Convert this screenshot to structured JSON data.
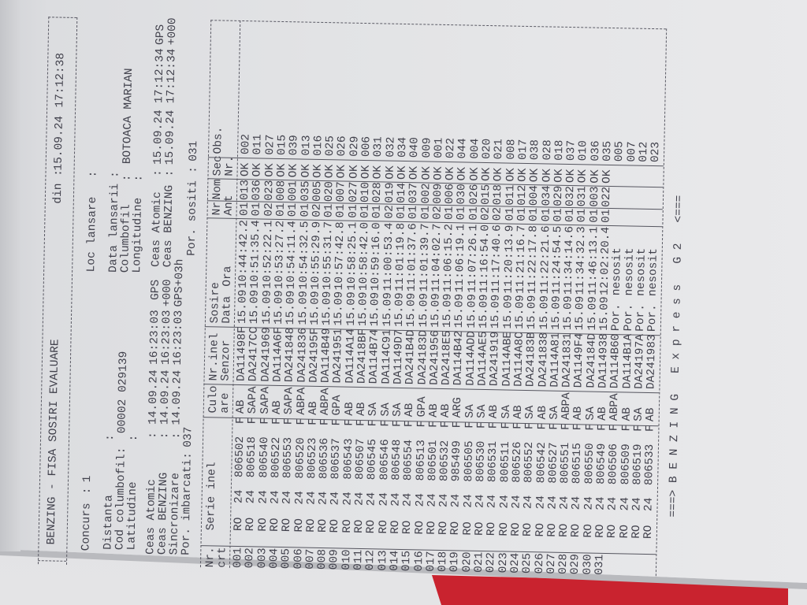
{
  "header": {
    "title": "BENZING - FISA SOSIRI EVALUARE",
    "din_label": "din :",
    "din_date": "15.09.24",
    "din_time": "17:12:38"
  },
  "info_left": {
    "concurs": {
      "label": "Concurs",
      "value": "1"
    },
    "distanta": {
      "label": "Distanta",
      "value": ""
    },
    "cod_columbofil": {
      "label": "Cod columbofil",
      "value": "00002 029139"
    },
    "latitudine": {
      "label": "Latitudine",
      "value": ""
    },
    "ceas_atomic": {
      "label": "Ceas Atomic",
      "date": "14.09.24",
      "time": "16:23:03",
      "tag": "GPS"
    },
    "ceas_benzing": {
      "label": "Ceas BENZING",
      "date": "14.09.24",
      "time": "16:23:03",
      "tag": "+000"
    },
    "sincronizare": {
      "label": "Sincronizare",
      "date": "14.09.24",
      "time": "16:23:03",
      "tag": "GPS+03h"
    },
    "por_imbarcati": {
      "label": "Por. imbarcati",
      "value": "037"
    }
  },
  "info_right": {
    "loc_lansare": {
      "label": "Loc lansare",
      "value": ""
    },
    "data_lansarii": {
      "label": "Data lansarii",
      "value": ""
    },
    "columbofil": {
      "label": "Columbofil",
      "value": "BOTOACA MARIAN"
    },
    "longitudine": {
      "label": "Longitudine",
      "value": ""
    },
    "ceas_atomic": {
      "label": "Ceas Atomic",
      "date": "15.09.24",
      "time": "17:12:34",
      "tag": "GPS"
    },
    "ceas_benzing": {
      "label": "Ceas BENZING",
      "date": "15.09.24",
      "time": "17:12:34",
      "tag": "+000"
    },
    "por_sositi": {
      "label": "Por. sositi",
      "value": "031"
    }
  },
  "table": {
    "headers": {
      "nr": [
        "Nr.",
        "crt"
      ],
      "serie": [
        "Serie inel",
        ""
      ],
      "culoare": [
        "Culo",
        "are"
      ],
      "senzor": [
        "Nr.inel",
        "Senzor"
      ],
      "sosire": [
        "Sosire",
        "Data",
        "Ora"
      ],
      "ant": [
        "Nr.",
        "Ant"
      ],
      "nom": [
        "Nom",
        ""
      ],
      "sec": [
        "Sec",
        "Nr."
      ],
      "obs": [
        "Obs.",
        ""
      ]
    },
    "rows": [
      [
        "001",
        "RO",
        "24",
        "806502",
        "F",
        "AB",
        "DA11498F",
        "15.09",
        "10:44:42.2",
        "01",
        "013",
        "OK",
        "002"
      ],
      [
        "002",
        "RO",
        "24",
        "806518",
        "F",
        "SAPA",
        "DA2417CC",
        "15.09",
        "10:51:35.4",
        "01",
        "036",
        "OK",
        "011"
      ],
      [
        "003",
        "RO",
        "24",
        "806540",
        "F",
        "SAPA",
        "DA241969",
        "15.09",
        "10:52:22.1",
        "02",
        "023",
        "OK",
        "027"
      ],
      [
        "004",
        "RO",
        "24",
        "806522",
        "F",
        "AB",
        "DA114A6F",
        "15.09",
        "10:53:27.2",
        "01",
        "008",
        "OK",
        "015"
      ],
      [
        "005",
        "RO",
        "24",
        "806553",
        "F",
        "SAPA",
        "DA241848",
        "15.09",
        "10:54:11.4",
        "01",
        "001",
        "OK",
        "039"
      ],
      [
        "006",
        "RO",
        "24",
        "806520",
        "F",
        "ABPA",
        "DA241836",
        "15.09",
        "10:54:32.5",
        "01",
        "035",
        "OK",
        "013"
      ],
      [
        "007",
        "RO",
        "24",
        "806523",
        "F",
        "AB",
        "DA24195F",
        "15.09",
        "10:55:29.9",
        "02",
        "005",
        "OK",
        "016"
      ],
      [
        "008",
        "RO",
        "24",
        "806536",
        "F",
        "ABPA",
        "DA114B49",
        "15.09",
        "10:55:31.7",
        "01",
        "020",
        "OK",
        "025"
      ],
      [
        "009",
        "RO",
        "24",
        "806537",
        "F",
        "GPA",
        "DA241951",
        "15.09",
        "10:57:42.8",
        "01",
        "007",
        "OK",
        "026"
      ],
      [
        "010",
        "RO",
        "24",
        "806543",
        "F",
        "AB",
        "DA114A14",
        "15.09",
        "10:58:25.1",
        "01",
        "027",
        "OK",
        "029"
      ],
      [
        "011",
        "RO",
        "24",
        "806507",
        "F",
        "AB",
        "DA2418BF",
        "15.09",
        "10:58:42.0",
        "01",
        "010",
        "OK",
        "006"
      ],
      [
        "012",
        "RO",
        "24",
        "806545",
        "F",
        "SA",
        "DA114B74",
        "15.09",
        "10:59:16.0",
        "01",
        "028",
        "OK",
        "031"
      ],
      [
        "013",
        "RO",
        "24",
        "806546",
        "F",
        "SA",
        "DA114C91",
        "15.09",
        "11:00:53.4",
        "02",
        "019",
        "OK",
        "032"
      ],
      [
        "014",
        "RO",
        "24",
        "806548",
        "F",
        "SA",
        "DA1149D7",
        "15.09",
        "11:01:19.8",
        "01",
        "014",
        "OK",
        "034"
      ],
      [
        "015",
        "RO",
        "24",
        "806554",
        "F",
        "AB",
        "DA241B4D",
        "15.09",
        "11:01:37.6",
        "01",
        "037",
        "OK",
        "040"
      ],
      [
        "016",
        "RO",
        "24",
        "806513",
        "F",
        "GPA",
        "DA24183D",
        "15.09",
        "11:01:39.7",
        "01",
        "002",
        "OK",
        "009"
      ],
      [
        "017",
        "RO",
        "24",
        "806501",
        "F",
        "AB",
        "DA241956",
        "15.09",
        "11:04:02.7",
        "02",
        "009",
        "OK",
        "001"
      ],
      [
        "018",
        "RO",
        "24",
        "806532",
        "F",
        "AB",
        "DA2418E5",
        "15.09",
        "11:06:15.2",
        "01",
        "006",
        "OK",
        "022"
      ],
      [
        "019",
        "RO",
        "24",
        "985499",
        "F",
        "ARG",
        "DA114B42",
        "15.09",
        "11:06:19.1",
        "01",
        "030",
        "OK",
        "044"
      ],
      [
        "020",
        "RO",
        "24",
        "806505",
        "F",
        "SA",
        "DA114ADD",
        "15.09",
        "11:07:26.1",
        "01",
        "026",
        "OK",
        "004"
      ],
      [
        "021",
        "RO",
        "24",
        "806530",
        "F",
        "SA",
        "DA114AE5",
        "15.09",
        "11:16:54.0",
        "02",
        "015",
        "OK",
        "020"
      ],
      [
        "022",
        "RO",
        "24",
        "806531",
        "F",
        "AB",
        "DA241919",
        "15.09",
        "11:17:40.6",
        "02",
        "018",
        "OK",
        "021"
      ],
      [
        "023",
        "RO",
        "24",
        "806511",
        "F",
        "SA",
        "DA114ABE",
        "15.09",
        "11:20:13.9",
        "01",
        "011",
        "OK",
        "008"
      ],
      [
        "024",
        "RO",
        "24",
        "806526",
        "F",
        "AB",
        "DA114A8C",
        "15.09",
        "11:21:16.7",
        "01",
        "012",
        "OK",
        "017"
      ],
      [
        "025",
        "RO",
        "24",
        "806552",
        "F",
        "SA",
        "DA24183B",
        "15.09",
        "11:22:17.8",
        "01",
        "004",
        "OK",
        "038"
      ],
      [
        "026",
        "RO",
        "24",
        "806542",
        "F",
        "AB",
        "DA241838",
        "15.09",
        "11:22:21.6",
        "01",
        "034",
        "OK",
        "028"
      ],
      [
        "027",
        "RO",
        "24",
        "806527",
        "F",
        "SA",
        "DA114A81",
        "15.09",
        "11:24:54.5",
        "01",
        "029",
        "OK",
        "018"
      ],
      [
        "028",
        "RO",
        "24",
        "806551",
        "F",
        "ABPA",
        "DA241831",
        "15.09",
        "11:34:14.6",
        "01",
        "032",
        "OK",
        "037"
      ],
      [
        "029",
        "RO",
        "24",
        "806515",
        "F",
        "AB",
        "DA1149F4",
        "15.09",
        "11:34:32.3",
        "01",
        "031",
        "OK",
        "010"
      ],
      [
        "030",
        "RO",
        "24",
        "806550",
        "F",
        "SA",
        "DA24184D",
        "15.09",
        "11:46:13.1",
        "01",
        "003",
        "OK",
        "036"
      ],
      [
        "031",
        "RO",
        "24",
        "806549",
        "F",
        "AB",
        "DA114938",
        "15.09",
        "12:02:20.4",
        "01",
        "022",
        "OK",
        "035"
      ],
      [
        "",
        "RO",
        "24",
        "806506",
        "F",
        "ABPA",
        "DA114B60",
        "Por.",
        "nesosit",
        "",
        "",
        "",
        "005"
      ],
      [
        "",
        "RO",
        "24",
        "806509",
        "F",
        "AB",
        "DA114B1A",
        "Por.",
        "nesosit",
        "",
        "",
        "",
        "007"
      ],
      [
        "",
        "RO",
        "24",
        "806519",
        "F",
        "SA",
        "DA24197A",
        "Por.",
        "nesosit",
        "",
        "",
        "",
        "012"
      ],
      [
        "",
        "RO",
        "24",
        "806533",
        "F",
        "AB",
        "DA241983",
        "Por.",
        "nesosit",
        "",
        "",
        "",
        "023"
      ]
    ]
  },
  "footer": "===> B E N Z I N G   E x p r e s s   G 2   <==="
}
